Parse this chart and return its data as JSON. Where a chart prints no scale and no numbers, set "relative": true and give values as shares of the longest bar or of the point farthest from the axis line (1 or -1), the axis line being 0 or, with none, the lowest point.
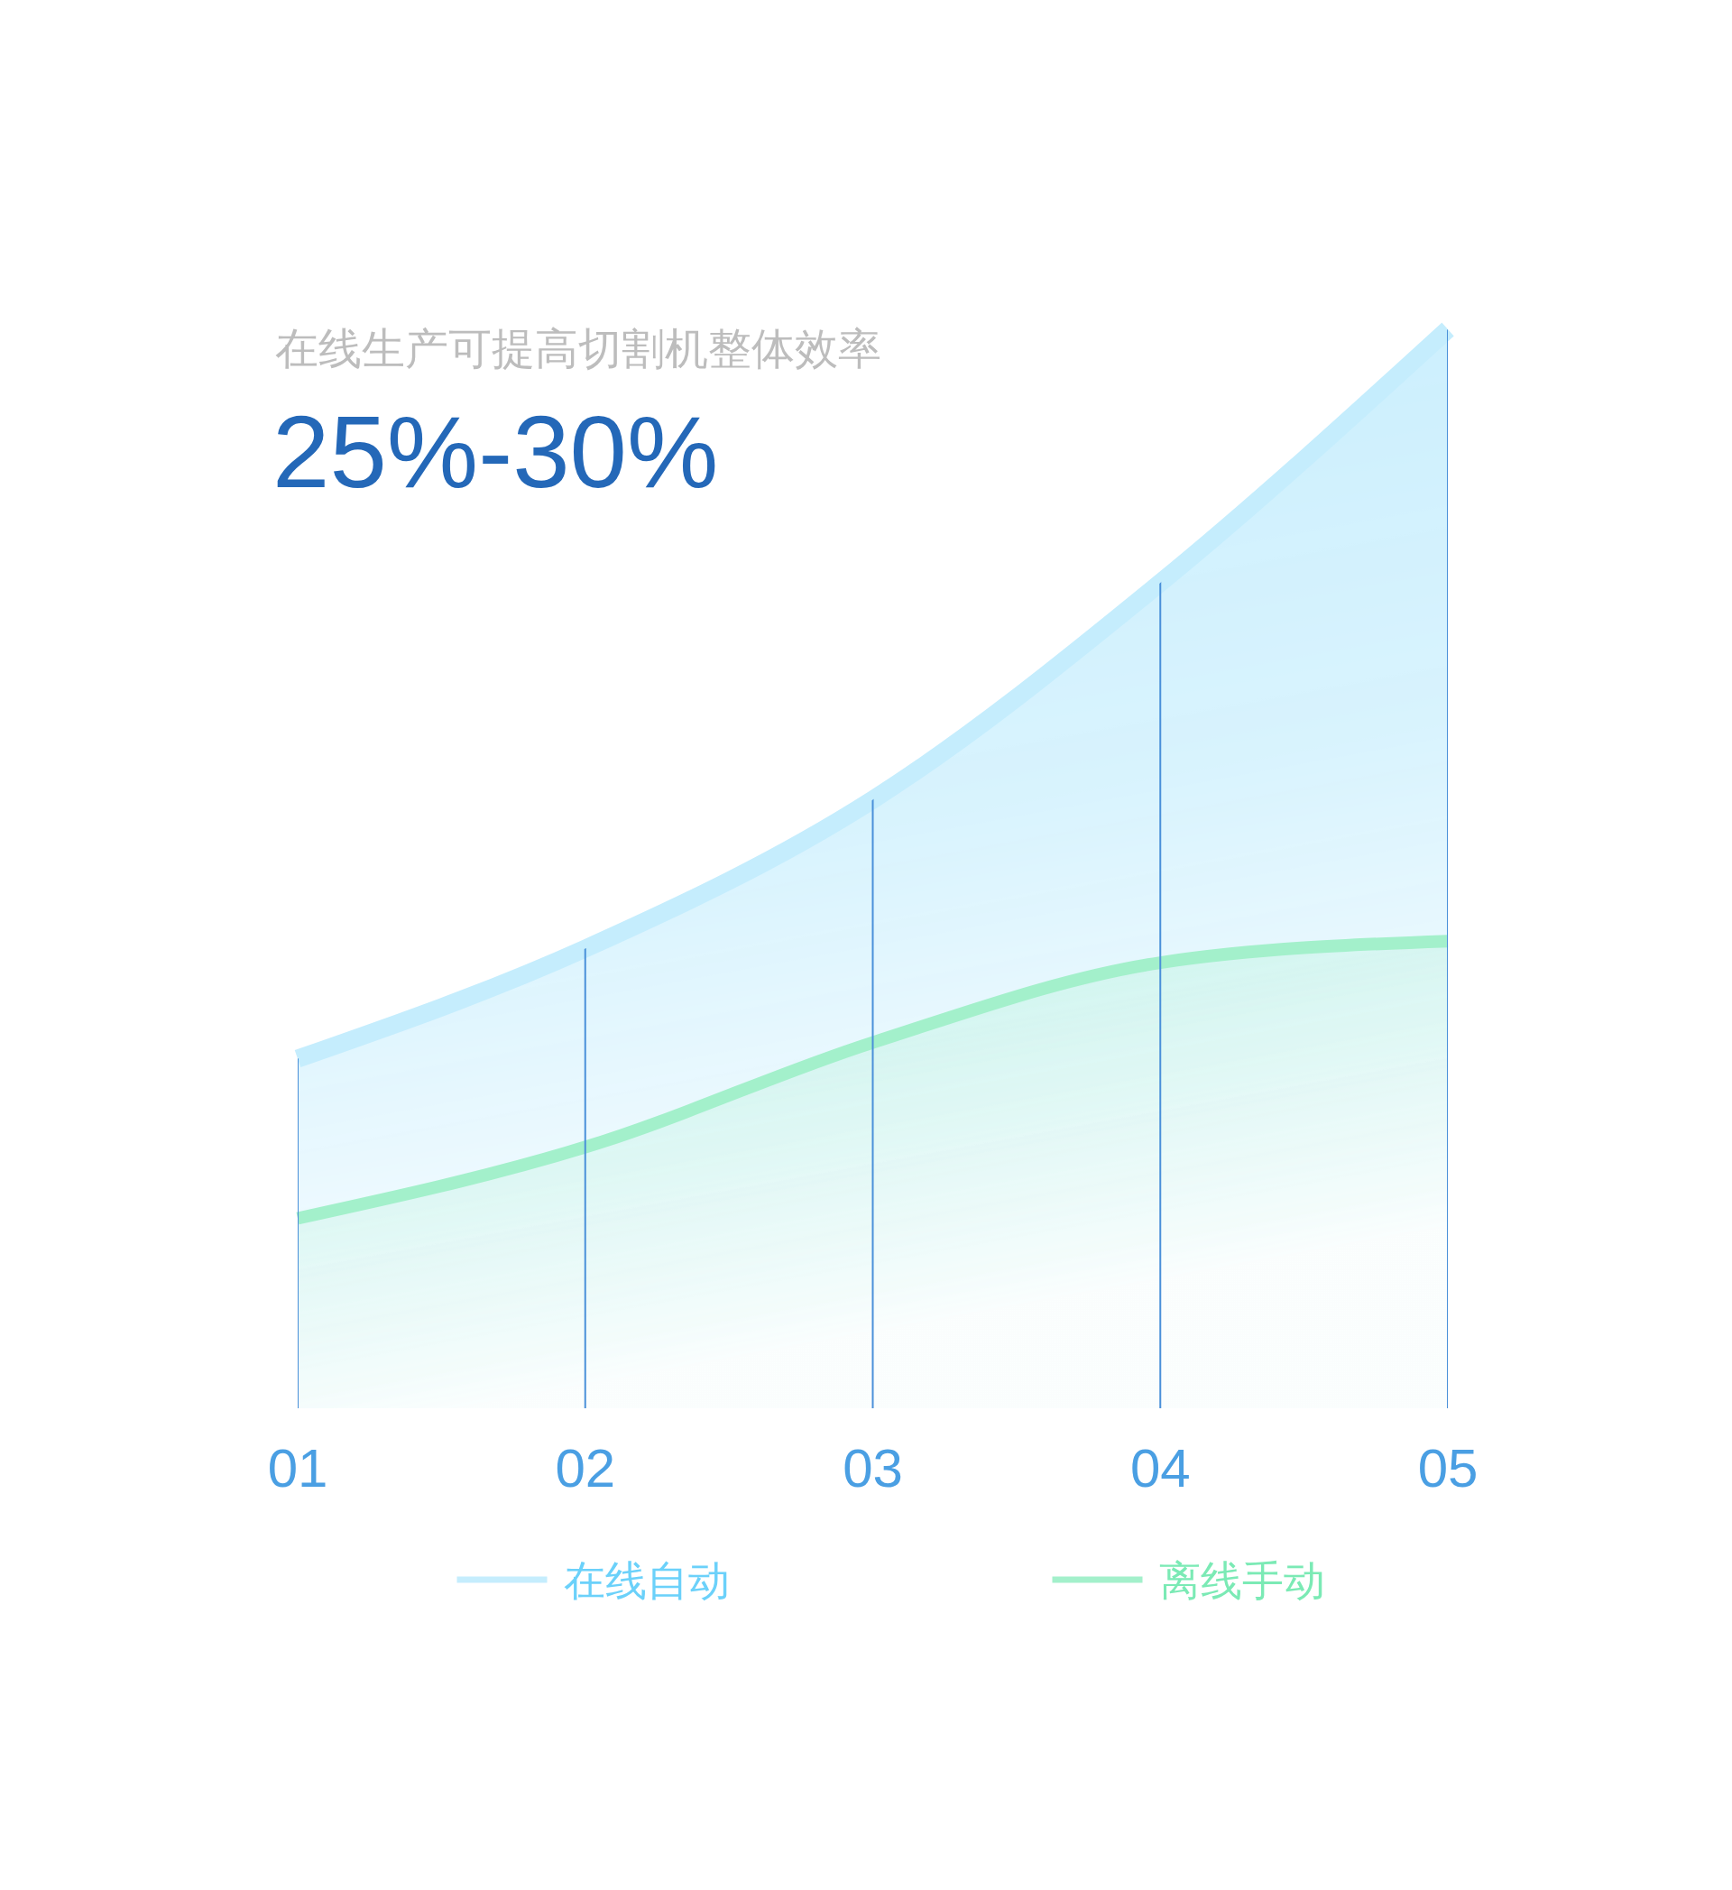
{
  "chart_data": {
    "type": "area",
    "title": "在线生产可提高切割机整体效率",
    "subtitle": "25%-30%",
    "categories": [
      "01",
      "02",
      "03",
      "04",
      "05"
    ],
    "relative": true,
    "series": [
      {
        "name": "在线自动",
        "color": "#c5edfd",
        "values": [
          0.324,
          0.426,
          0.564,
          0.765,
          1
        ]
      },
      {
        "name": "离线手动",
        "color": "#a3f0cb",
        "values": [
          0.176,
          0.242,
          0.339,
          0.413,
          0.433
        ]
      }
    ],
    "grid": "x",
    "legend": "bottom"
  }
}
